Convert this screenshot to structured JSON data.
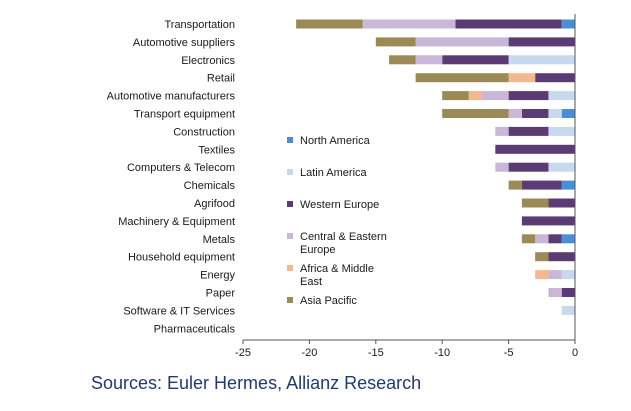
{
  "chart_data": {
    "type": "bar",
    "orientation": "horizontal",
    "stacked": true,
    "categories": [
      "Transportation",
      "Automotive suppliers",
      "Electronics",
      "Retail",
      "Automotive manufacturers",
      "Transport equipment",
      "Construction",
      "Textiles",
      "Computers & Telecom",
      "Chemicals",
      "Agrifood",
      "Machinery & Equipment",
      "Metals",
      "Household equipment",
      "Energy",
      "Paper",
      "Software & IT Services",
      "Pharmaceuticals"
    ],
    "series": [
      {
        "name": "North America",
        "color": "#4a8fd6",
        "values": [
          -1,
          0,
          0,
          0,
          0,
          -1,
          0,
          0,
          0,
          -1,
          0,
          0,
          -1,
          0,
          0,
          0,
          0,
          0
        ]
      },
      {
        "name": "Latin America",
        "color": "#c6d9ee",
        "values": [
          0,
          0,
          -5,
          0,
          -2,
          -1,
          -2,
          0,
          -2,
          0,
          0,
          0,
          0,
          0,
          -1,
          0,
          -1,
          0
        ]
      },
      {
        "name": "Western Europe",
        "color": "#5b3b73",
        "values": [
          -8,
          -5,
          -5,
          -3,
          -3,
          -2,
          -3,
          -6,
          -3,
          -3,
          -2,
          -4,
          -1,
          -2,
          0,
          -1,
          0,
          0
        ]
      },
      {
        "name": "Central & Eastern Europe",
        "color": "#c8b7d8",
        "values": [
          -7,
          -7,
          -2,
          0,
          -2,
          -1,
          -1,
          0,
          -1,
          0,
          0,
          0,
          -1,
          0,
          -1,
          -1,
          0,
          0
        ]
      },
      {
        "name": "Africa & Middle East",
        "color": "#f5b78f",
        "values": [
          0,
          0,
          0,
          -2,
          -1,
          0,
          0,
          0,
          0,
          0,
          0,
          0,
          0,
          0,
          -1,
          0,
          0,
          0
        ]
      },
      {
        "name": "Asia Pacific",
        "color": "#9b8a55",
        "values": [
          -5,
          -3,
          -2,
          -7,
          -2,
          -5,
          0,
          0,
          0,
          -1,
          -2,
          0,
          -1,
          -1,
          0,
          0,
          0,
          0
        ]
      }
    ],
    "xlim": [
      -25,
      0
    ],
    "xticks": [
      -25,
      -20,
      -15,
      -10,
      -5,
      0
    ],
    "legend": "inside-center",
    "grid": false
  },
  "source": "Sources: Euler Hermes, Allianz Research"
}
